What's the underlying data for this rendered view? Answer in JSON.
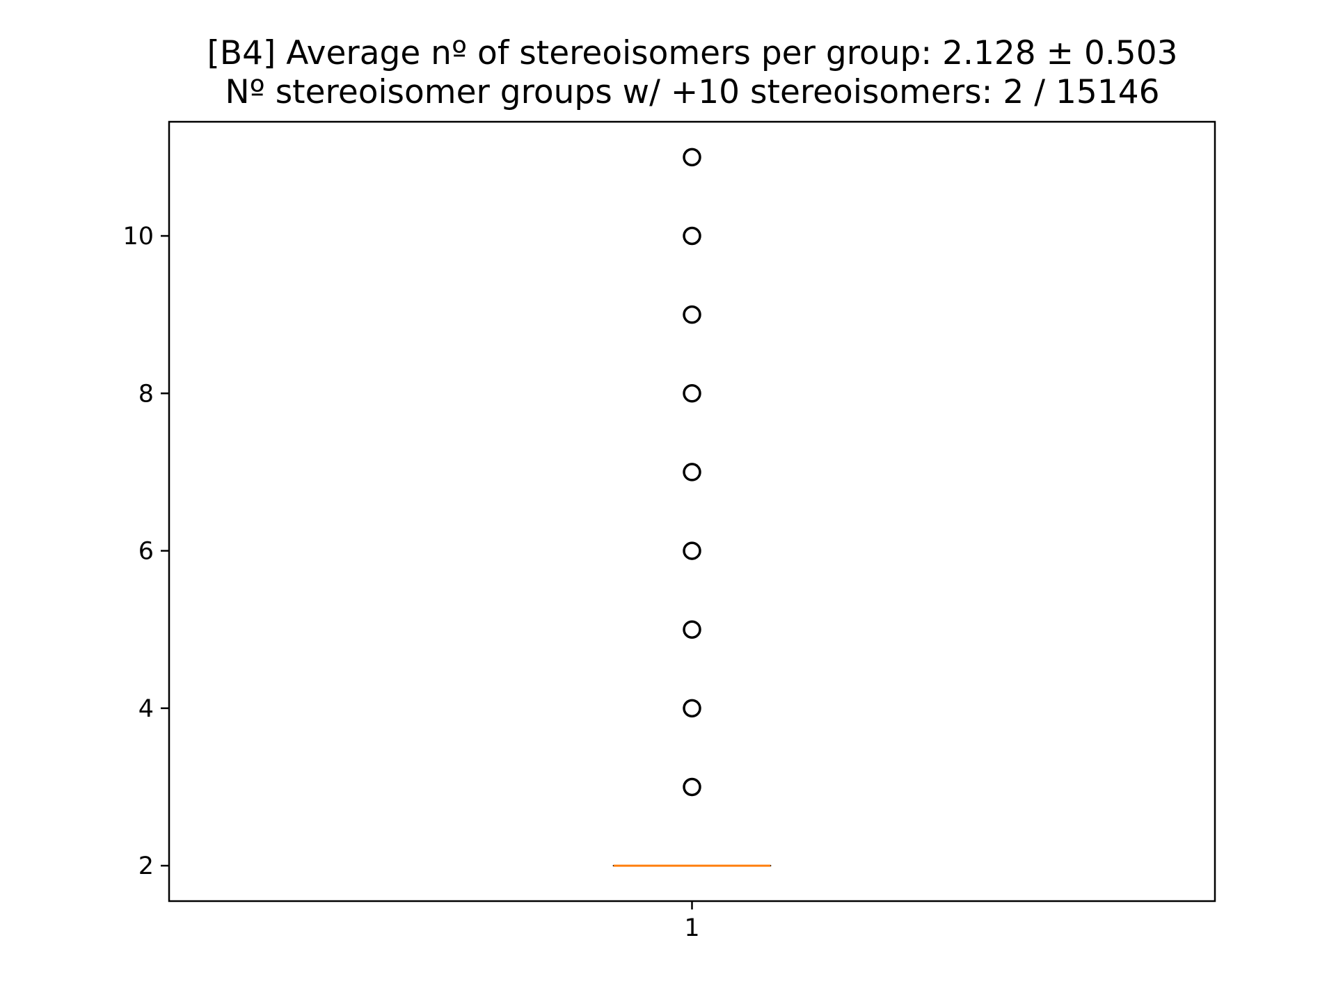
{
  "chart_data": {
    "type": "box",
    "title_line1": "[B4] Average nº of stereoisomers per group: 2.128 ± 0.503",
    "title_line2": "Nº stereoisomer groups w/ +10 stereoisomers: 2 / 15146",
    "xlabel": "",
    "ylabel": "",
    "categories": [
      "1"
    ],
    "x_positions": [
      1
    ],
    "xlim": [
      0.5,
      1.5
    ],
    "ylim": [
      1.55,
      11.45
    ],
    "yticks": [
      2,
      4,
      6,
      8,
      10
    ],
    "ytick_labels": [
      "2",
      "4",
      "6",
      "8",
      "10"
    ],
    "box": {
      "q1": 2,
      "median": 2,
      "q3": 2,
      "whisker_low": 2,
      "whisker_high": 2
    },
    "outliers": [
      3,
      4,
      5,
      6,
      7,
      8,
      9,
      10,
      11
    ],
    "grid": false,
    "colors": {
      "median": "#ff7f0e",
      "box": "#000000",
      "outlier_edge": "#000000",
      "axes": "#000000"
    }
  }
}
